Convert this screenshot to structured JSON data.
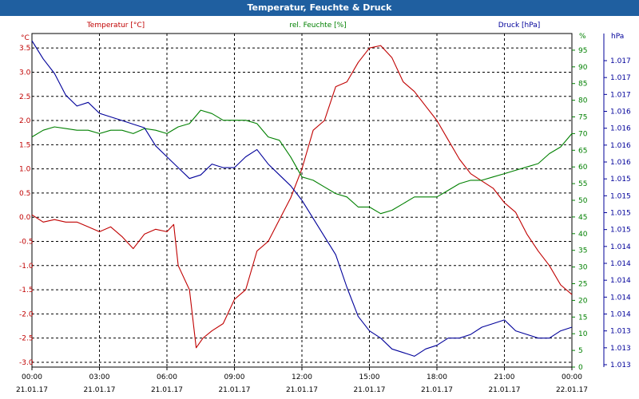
{
  "window": {
    "title": "Temperatur, Feuchte & Druck"
  },
  "chart_data": {
    "type": "line",
    "title": "Temperatur, Feuchte & Druck",
    "grid": true,
    "x_ticks": [
      {
        "hours": 0,
        "time": "00:00",
        "date": "21.01.17"
      },
      {
        "hours": 3,
        "time": "03:00",
        "date": "21.01.17"
      },
      {
        "hours": 6,
        "time": "06:00",
        "date": "21.01.17"
      },
      {
        "hours": 9,
        "time": "09:00",
        "date": "21.01.17"
      },
      {
        "hours": 12,
        "time": "12:00",
        "date": "21.01.17"
      },
      {
        "hours": 15,
        "time": "15:00",
        "date": "21.01.17"
      },
      {
        "hours": 18,
        "time": "18:00",
        "date": "21.01.17"
      },
      {
        "hours": 21,
        "time": "21:00",
        "date": "21.01.17"
      },
      {
        "hours": 24,
        "time": "00:00",
        "date": "22.01.17"
      }
    ],
    "axes": {
      "temperature": {
        "label": "Temperatur [°C]",
        "unit": "°C",
        "range": [
          -3.1,
          3.8
        ],
        "ticks": [
          "-3.0",
          "-2.5",
          "-2.0",
          "-1.5",
          "-1.0",
          "-0.5",
          "0.0",
          "0.5",
          "1.0",
          "1.5",
          "2.0",
          "2.5",
          "3.0",
          "3.5"
        ],
        "color": "#c00000"
      },
      "humidity": {
        "label": "rel. Feuchte [%]",
        "unit": "%",
        "range": [
          0,
          100
        ],
        "ticks": [
          "0",
          "5",
          "10",
          "15",
          "20",
          "25",
          "30",
          "35",
          "40",
          "45",
          "50",
          "55",
          "60",
          "65",
          "70",
          "75",
          "80",
          "85",
          "90",
          "95"
        ],
        "color": "#008000"
      },
      "pressure": {
        "label": "Druck [hPa]",
        "unit": "hPa",
        "range": [
          1012.8,
          1017.4
        ],
        "ticks": [
          "1.013",
          "1.013",
          "1.013",
          "1.014",
          "1.014",
          "1.014",
          "1.014",
          "1.014",
          "1.015",
          "1.015",
          "1.015",
          "1.015",
          "1.016",
          "1.016",
          "1.016",
          "1.016",
          "1.017",
          "1.017",
          "1.017"
        ],
        "color": "#00009a"
      }
    },
    "series": [
      {
        "name": "Temperatur [°C]",
        "axis": "temperature",
        "color": "#c00000",
        "x": [
          0,
          0.5,
          1,
          1.5,
          2,
          2.5,
          3,
          3.5,
          4,
          4.5,
          5,
          5.5,
          6,
          6.3,
          6.5,
          7,
          7.3,
          7.6,
          8,
          8.5,
          9,
          9.5,
          10,
          10.5,
          11,
          11.5,
          12,
          12.5,
          13,
          13.5,
          14,
          14.5,
          15,
          15.5,
          16,
          16.5,
          17,
          17.5,
          18,
          18.5,
          19,
          19.5,
          20,
          20.5,
          21,
          21.5,
          22,
          22.5,
          23,
          23.5,
          24
        ],
        "y": [
          0.05,
          -0.1,
          -0.05,
          -0.1,
          -0.1,
          -0.2,
          -0.3,
          -0.2,
          -0.4,
          -0.65,
          -0.35,
          -0.25,
          -0.3,
          -0.15,
          -1.0,
          -1.5,
          -2.7,
          -2.5,
          -2.35,
          -2.2,
          -1.7,
          -1.5,
          -0.7,
          -0.5,
          -0.05,
          0.4,
          1.0,
          1.8,
          2.0,
          2.7,
          2.8,
          3.2,
          3.5,
          3.55,
          3.3,
          2.8,
          2.6,
          2.3,
          2.0,
          1.6,
          1.2,
          0.9,
          0.75,
          0.6,
          0.3,
          0.1,
          -0.35,
          -0.7,
          -1.0,
          -1.4,
          -1.6
        ]
      },
      {
        "name": "rel. Feuchte [%]",
        "axis": "humidity",
        "color": "#008000",
        "x": [
          0,
          0.5,
          1,
          1.5,
          2,
          2.5,
          3,
          3.5,
          4,
          4.5,
          5,
          5.5,
          6,
          6.5,
          7,
          7.5,
          8,
          8.5,
          9,
          9.5,
          10,
          10.5,
          11,
          11.5,
          12,
          12.5,
          13,
          13.5,
          14,
          14.5,
          15,
          15.5,
          16,
          16.5,
          17,
          17.5,
          18,
          18.5,
          19,
          19.5,
          20,
          20.5,
          21,
          21.5,
          22,
          22.5,
          23,
          23.5,
          24
        ],
        "y": [
          69,
          71,
          72,
          71.5,
          71,
          71,
          70,
          71,
          71,
          70,
          71.5,
          71,
          70,
          72,
          73,
          77,
          76,
          74,
          74,
          74,
          73,
          69,
          68,
          63,
          57,
          56,
          54,
          52,
          51,
          48,
          48,
          46,
          47,
          49,
          51,
          51,
          51,
          53,
          55,
          56,
          56,
          57,
          58,
          59,
          60,
          61,
          64,
          66,
          70
        ]
      },
      {
        "name": "Druck [hPa]",
        "axis": "pressure",
        "color": "#00009a",
        "x": [
          0,
          0.5,
          1,
          1.5,
          2,
          2.5,
          3,
          3.5,
          4,
          4.5,
          5,
          5.5,
          6,
          6.5,
          7,
          7.5,
          8,
          8.5,
          9,
          9.5,
          10,
          10.5,
          11,
          11.5,
          12,
          12.5,
          13,
          13.5,
          14,
          14.5,
          15,
          15.5,
          16,
          16.5,
          17,
          17.5,
          18,
          18.5,
          19,
          19.5,
          20,
          20.5,
          21,
          21.5,
          22,
          22.5,
          23,
          23.5,
          24
        ],
        "y": [
          1017.3,
          1017.05,
          1016.85,
          1016.55,
          1016.4,
          1016.45,
          1016.3,
          1016.25,
          1016.2,
          1016.15,
          1016.1,
          1015.85,
          1015.7,
          1015.55,
          1015.4,
          1015.45,
          1015.6,
          1015.55,
          1015.55,
          1015.7,
          1015.8,
          1015.6,
          1015.45,
          1015.3,
          1015.1,
          1014.85,
          1014.6,
          1014.35,
          1013.9,
          1013.5,
          1013.3,
          1013.2,
          1013.05,
          1013.0,
          1012.95,
          1013.05,
          1013.1,
          1013.2,
          1013.2,
          1013.25,
          1013.35,
          1013.4,
          1013.45,
          1013.3,
          1013.25,
          1013.2,
          1013.2,
          1013.3,
          1013.35
        ]
      }
    ]
  }
}
